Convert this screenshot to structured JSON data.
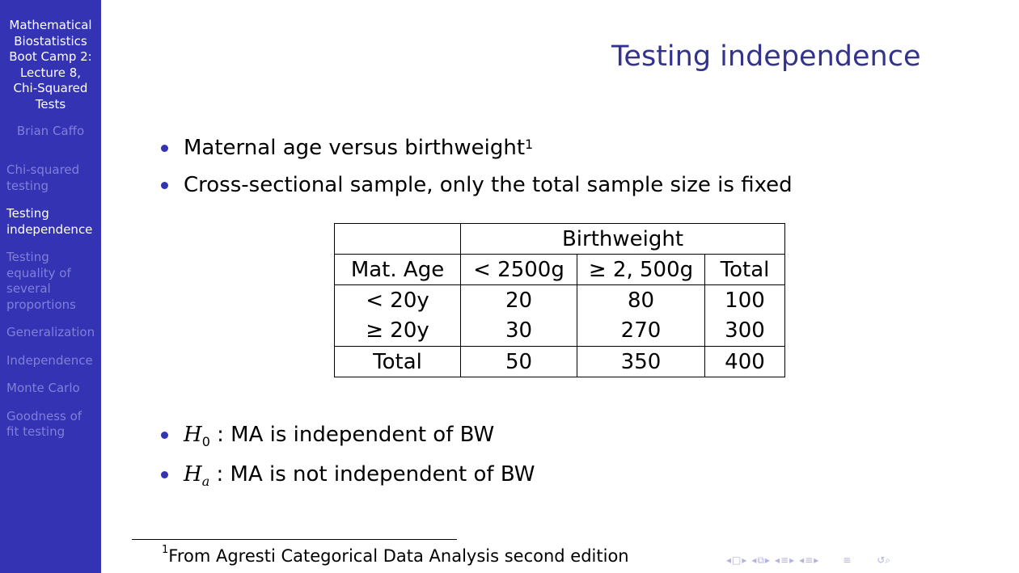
{
  "sidebar": {
    "title_lines": [
      "Mathematical",
      "Biostatistics",
      "Boot Camp 2:",
      "Lecture 8,",
      "Chi-Squared",
      "Tests"
    ],
    "author": "Brian Caffo",
    "sections": [
      {
        "lines": [
          "Chi-squared",
          "testing"
        ],
        "active": false
      },
      {
        "lines": [
          "Testing",
          "independence"
        ],
        "active": true
      },
      {
        "lines": [
          "Testing",
          "equality of",
          "several",
          "proportions"
        ],
        "active": false
      },
      {
        "lines": [
          "Generalization"
        ],
        "active": false
      },
      {
        "lines": [
          "Independence"
        ],
        "active": false
      },
      {
        "lines": [
          "Monte Carlo"
        ],
        "active": false
      },
      {
        "lines": [
          "Goodness of",
          "fit testing"
        ],
        "active": false
      }
    ]
  },
  "slide": {
    "title": "Testing independence",
    "bullets_top": {
      "b1_text": "Maternal age versus birthweight",
      "b1_footmark": "1",
      "b2_text": "Cross-sectional sample, only the total sample size is fixed"
    },
    "table": {
      "header_group": "Birthweight",
      "col_headers": [
        "Mat. Age",
        "< 2500g",
        "≥ 2, 500g",
        "Total"
      ],
      "rows": [
        [
          "< 20y",
          "20",
          "80",
          "100"
        ],
        [
          "≥ 20y",
          "30",
          "270",
          "300"
        ]
      ],
      "total_row": [
        "Total",
        "50",
        "350",
        "400"
      ]
    },
    "bullets_bottom": {
      "h0_symbol": "H",
      "h0_sub": "0",
      "h0_text": " : MA is independent of BW",
      "ha_symbol": "H",
      "ha_sub": "a",
      "ha_text": " : MA is not independent of BW"
    },
    "footnote": {
      "mark": "1",
      "text": "From Agresti Categorical Data Analysis second edition"
    }
  },
  "beamer_nav": {
    "icons": [
      "nav-prev-frame-icon",
      "nav-frame-icon",
      "nav-next-frame-icon",
      "nav-prev-subsection-icon",
      "nav-subsection-icon",
      "nav-next-subsection-icon",
      "nav-prev-section-icon",
      "nav-section-icon",
      "nav-next-section-icon",
      "nav-search-icon"
    ]
  }
}
